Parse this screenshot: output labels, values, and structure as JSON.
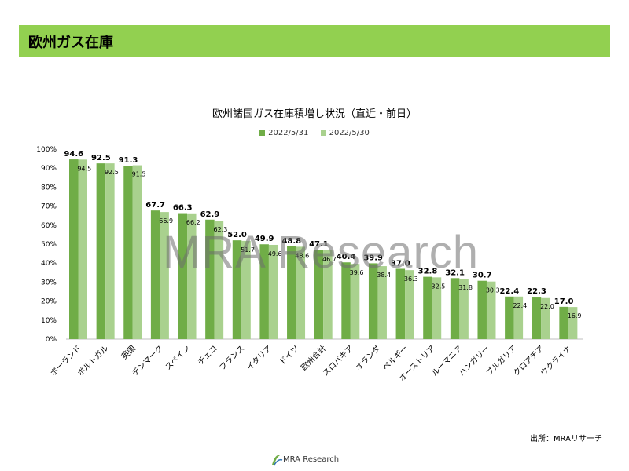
{
  "header": {
    "title": "欧州ガス在庫"
  },
  "source": "出所：MRAリサーチ",
  "footer": {
    "logo_text": "MRA Research"
  },
  "watermark": "MRA Research",
  "colors": {
    "header_bg": "#92d050",
    "series1": "#70ad47",
    "series2": "#a9d18e"
  },
  "chart_data": {
    "type": "bar",
    "title": "欧州諸国ガス在庫積増し状況（直近・前日）",
    "categories": [
      "ポーランド",
      "ポルトガル",
      "英国",
      "デンマーク",
      "スペイン",
      "チェコ",
      "フランス",
      "イタリア",
      "ドイツ",
      "欧州合計",
      "スロバキア",
      "オランダ",
      "ベルギー",
      "オーストリア",
      "ルーマニア",
      "ハンガリー",
      "ブルガリア",
      "クロアチア",
      "ウクライナ"
    ],
    "series": [
      {
        "name": "2022/5/31",
        "values": [
          94.6,
          92.5,
          91.3,
          67.7,
          66.3,
          62.9,
          52.0,
          49.9,
          48.8,
          47.1,
          40.4,
          39.9,
          37.0,
          32.8,
          32.1,
          30.7,
          22.4,
          22.3,
          17.0
        ]
      },
      {
        "name": "2022/5/30",
        "values": [
          94.5,
          92.5,
          91.5,
          66.9,
          66.2,
          62.3,
          51.7,
          49.6,
          48.6,
          46.7,
          39.6,
          38.4,
          36.3,
          32.5,
          31.8,
          30.3,
          22.4,
          22.0,
          16.9
        ]
      }
    ],
    "ylim": [
      0,
      100
    ],
    "yticks": [
      "0%",
      "10%",
      "20%",
      "30%",
      "40%",
      "50%",
      "60%",
      "70%",
      "80%",
      "90%",
      "100%"
    ],
    "legend": "top",
    "grid": false
  }
}
